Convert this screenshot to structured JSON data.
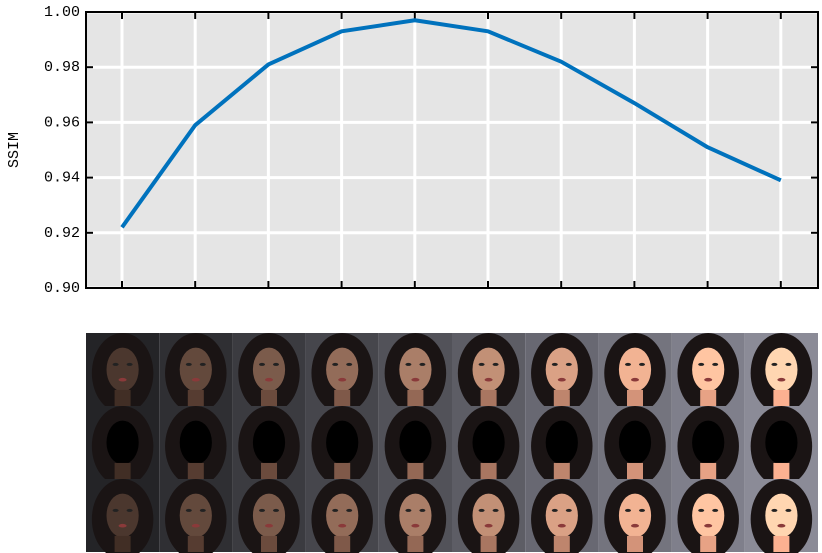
{
  "chart_data": {
    "type": "line",
    "ylabel": "SSIM",
    "categories": [
      null,
      null,
      null,
      null,
      null,
      null,
      null,
      null,
      null,
      null
    ],
    "series": [
      {
        "color": "#0072bd",
        "values": [
          0.922,
          0.959,
          0.981,
          0.993,
          0.997,
          0.993,
          0.982,
          0.967,
          0.951,
          0.939
        ]
      }
    ],
    "ylim": [
      0.9,
      1.0
    ],
    "yticks": [
      {
        "value": 0.9,
        "label": "0.90"
      },
      0.92,
      0.94,
      0.96,
      0.98,
      {
        "value": 1.0,
        "label": "1.00"
      }
    ],
    "grid": true
  }
}
